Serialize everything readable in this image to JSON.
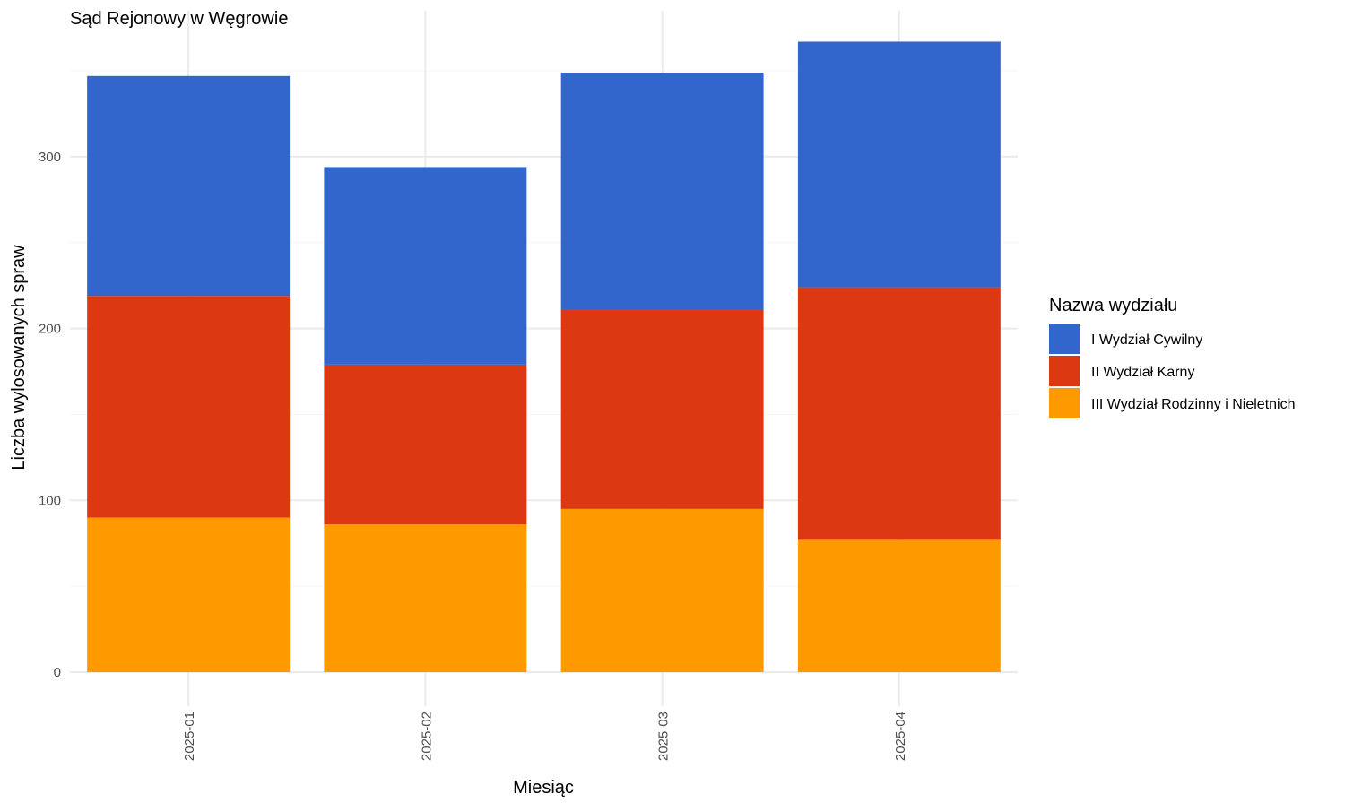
{
  "chart_data": {
    "type": "bar",
    "stacked": true,
    "title": "Sąd Rejonowy w Węgrowie",
    "xlabel": "Miesiąc",
    "ylabel": "Liczba wylosowanych spraw",
    "categories": [
      "2025-01",
      "2025-02",
      "2025-03",
      "2025-04"
    ],
    "ylim": [
      0,
      385
    ],
    "yticks": [
      0,
      100,
      200,
      300
    ],
    "grid": true,
    "legend": {
      "title": "Nazwa wydziału",
      "position": "right"
    },
    "series": [
      {
        "name": "III Wydział Rodzinny i Nieletnich",
        "color": "#ff9900",
        "values": [
          90,
          86,
          95,
          77
        ]
      },
      {
        "name": "II Wydział Karny",
        "color": "#dc3912",
        "values": [
          129,
          93,
          116,
          147
        ]
      },
      {
        "name": "I Wydział Cywilny",
        "color": "#3366cc",
        "values": [
          128,
          115,
          138,
          143
        ]
      }
    ],
    "legend_order": [
      2,
      1,
      0
    ]
  }
}
